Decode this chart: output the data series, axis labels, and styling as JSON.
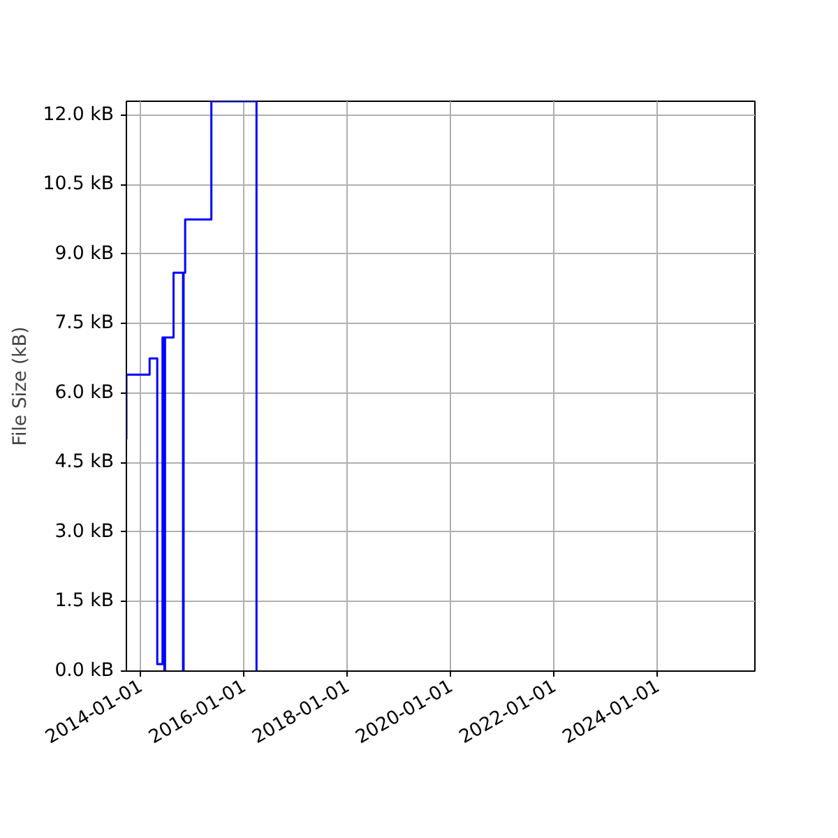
{
  "chart_data": {
    "type": "step",
    "ylabel": "File Size (kB)",
    "x": [
      "2013-09-25",
      "2013-09-25",
      "2014-03-08",
      "2014-05-01",
      "2014-06-07",
      "2014-06-20",
      "2014-06-25",
      "2014-08-24",
      "2014-10-30",
      "2014-11-03",
      "2014-11-14",
      "2015-05-18",
      "2016-04-01"
    ],
    "series": [
      {
        "color": "#0000ff",
        "values": [
          5.0,
          6.4,
          6.75,
          0.15,
          7.2,
          0.0,
          7.2,
          8.6,
          0.0,
          8.6,
          9.75,
          12.3,
          0.0
        ]
      }
    ],
    "xlim": [
      "2013-09-25",
      "2025-11-20"
    ],
    "ylim": [
      0,
      12.3
    ],
    "xticks": [
      {
        "value": "2014-01-01",
        "label": "2014-01-01"
      },
      {
        "value": "2016-01-01",
        "label": "2016-01-01"
      },
      {
        "value": "2018-01-01",
        "label": "2018-01-01"
      },
      {
        "value": "2020-01-01",
        "label": "2020-01-01"
      },
      {
        "value": "2022-01-01",
        "label": "2022-01-01"
      },
      {
        "value": "2024-01-01",
        "label": "2024-01-01"
      }
    ],
    "yticks": [
      {
        "value": 0,
        "label": "0.0 kB"
      },
      {
        "value": 1.5,
        "label": "1.5 kB"
      },
      {
        "value": 3,
        "label": "3.0 kB"
      },
      {
        "value": 4.5,
        "label": "4.5 kB"
      },
      {
        "value": 6,
        "label": "6.0 kB"
      },
      {
        "value": 7.5,
        "label": "7.5 kB"
      },
      {
        "value": 9,
        "label": "9.0 kB"
      },
      {
        "value": 10.5,
        "label": "10.5 kB"
      },
      {
        "value": 12,
        "label": "12.0 kB"
      }
    ],
    "grid": true
  }
}
